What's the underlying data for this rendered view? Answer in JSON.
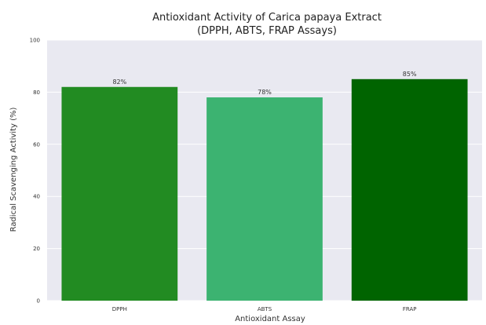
{
  "chart_data": {
    "type": "bar",
    "title_line1": "Antioxidant Activity of Carica papaya Extract",
    "title_line2": "(DPPH, ABTS, FRAP Assays)",
    "xlabel": "Antioxidant Assay",
    "ylabel": "Radical Scavenging Activity (%)",
    "categories": [
      "DPPH",
      "ABTS",
      "FRAP"
    ],
    "values": [
      82,
      78,
      85
    ],
    "value_labels": [
      "82%",
      "78%",
      "85%"
    ],
    "colors": [
      "#228b22",
      "#3cb371",
      "#006400"
    ],
    "ylim": [
      0,
      100
    ],
    "yticks": [
      "0",
      "20",
      "40",
      "60",
      "80",
      "100"
    ],
    "grid": true,
    "background": "#e9e9f1"
  }
}
